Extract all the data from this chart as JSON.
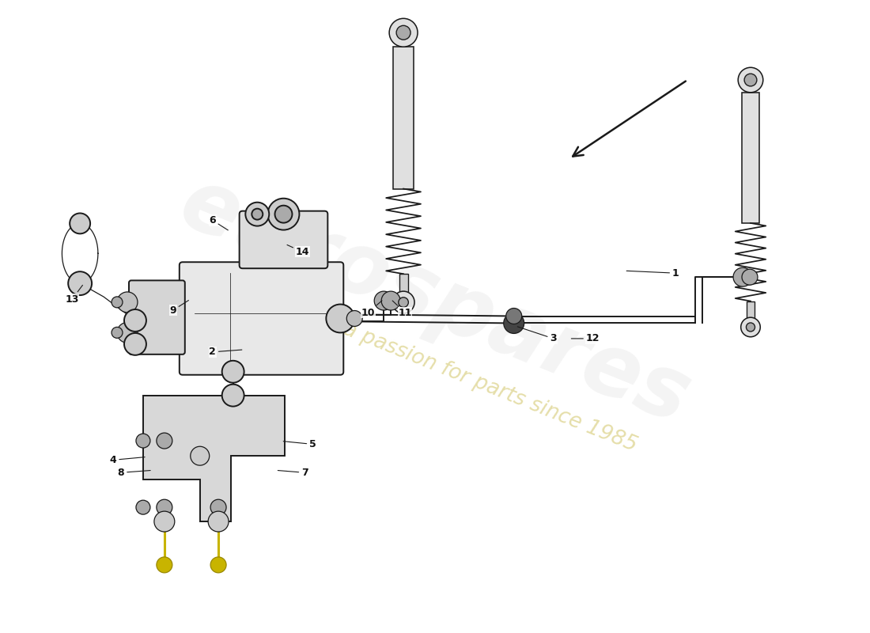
{
  "bg_color": "#ffffff",
  "watermark_text1": "eurospares",
  "watermark_text2": "a passion for parts since 1985",
  "watermark_color": "#cccccc",
  "watermark_color2": "#d4c870",
  "line_color": "#1a1a1a",
  "label_color": "#111111",
  "highlight_color": "#c8b400",
  "arrow_color": "#1a1a1a"
}
